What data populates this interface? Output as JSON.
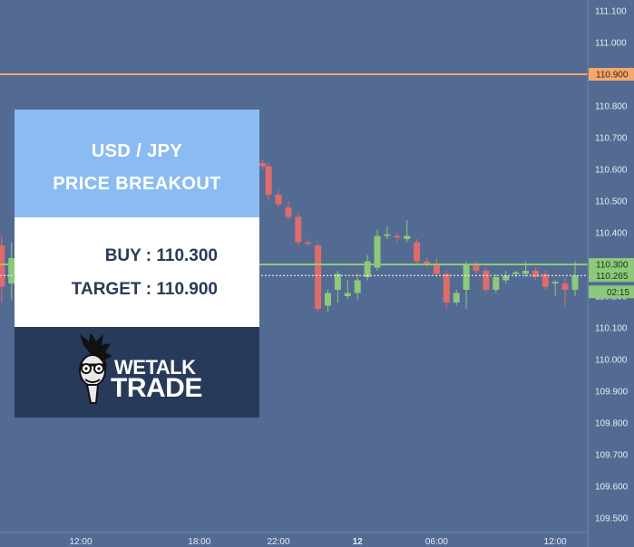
{
  "card": {
    "title_line1": "USD / JPY",
    "title_line2": "PRICE BREAKOUT",
    "buy": "BUY : 110.300",
    "target": "TARGET : 110.900"
  },
  "logo": {
    "line1": "WETALK",
    "line2": "TRADE"
  },
  "colors": {
    "background": "#536b93",
    "bull": "#8cc97a",
    "bear": "#e06b6b",
    "target_line": "#f5a86a",
    "buy_line": "#8cc97a"
  },
  "chart_data": {
    "type": "candlestick",
    "ylim": [
      109.48,
      111.12
    ],
    "y_ticks": [
      "109.500",
      "109.600",
      "109.700",
      "109.800",
      "109.900",
      "110.000",
      "110.100",
      "110.200",
      "110.300",
      "110.400",
      "110.500",
      "110.600",
      "110.700",
      "110.800",
      "110.900",
      "111.000",
      "111.100"
    ],
    "x_ticks": [
      {
        "label": "12:00",
        "t": 12,
        "bold": false
      },
      {
        "label": "18:00",
        "t": 18,
        "bold": false
      },
      {
        "label": "22:00",
        "t": 22,
        "bold": false
      },
      {
        "label": "12",
        "t": 26,
        "bold": true
      },
      {
        "label": "06:00",
        "t": 30,
        "bold": false
      },
      {
        "label": "12:00",
        "t": 36,
        "bold": false
      }
    ],
    "markers": [
      {
        "value": 110.9,
        "label": "110.900",
        "role": "target",
        "style": "solid"
      },
      {
        "value": 110.3,
        "label": "110.300",
        "role": "buy",
        "style": "solid"
      },
      {
        "value": 110.265,
        "label": "110.265",
        "role": "current",
        "style": "dotted"
      }
    ],
    "countdown": "02:15",
    "candles": [
      {
        "t": 8.0,
        "o": 110.36,
        "h": 110.39,
        "l": 110.18,
        "c": 110.23
      },
      {
        "t": 8.5,
        "o": 110.24,
        "h": 110.37,
        "l": 110.19,
        "c": 110.32
      },
      {
        "t": 21.2,
        "o": 110.62,
        "h": 110.63,
        "l": 110.6,
        "c": 110.61
      },
      {
        "t": 21.5,
        "o": 110.61,
        "h": 110.62,
        "l": 110.5,
        "c": 110.52
      },
      {
        "t": 22.0,
        "o": 110.52,
        "h": 110.54,
        "l": 110.48,
        "c": 110.49
      },
      {
        "t": 22.5,
        "o": 110.48,
        "h": 110.5,
        "l": 110.44,
        "c": 110.45
      },
      {
        "t": 23.0,
        "o": 110.45,
        "h": 110.46,
        "l": 110.36,
        "c": 110.37
      },
      {
        "t": 23.5,
        "o": 110.37,
        "h": 110.38,
        "l": 110.36,
        "c": 110.365
      },
      {
        "t": 24.0,
        "o": 110.36,
        "h": 110.37,
        "l": 110.15,
        "c": 110.16
      },
      {
        "t": 24.5,
        "o": 110.17,
        "h": 110.22,
        "l": 110.15,
        "c": 110.21
      },
      {
        "t": 25.0,
        "o": 110.22,
        "h": 110.28,
        "l": 110.18,
        "c": 110.27
      },
      {
        "t": 25.5,
        "o": 110.2,
        "h": 110.25,
        "l": 110.19,
        "c": 110.21
      },
      {
        "t": 26.0,
        "o": 110.21,
        "h": 110.27,
        "l": 110.19,
        "c": 110.25
      },
      {
        "t": 26.5,
        "o": 110.26,
        "h": 110.33,
        "l": 110.25,
        "c": 110.31
      },
      {
        "t": 27.0,
        "o": 110.29,
        "h": 110.41,
        "l": 110.28,
        "c": 110.39
      },
      {
        "t": 27.5,
        "o": 110.39,
        "h": 110.42,
        "l": 110.38,
        "c": 110.395
      },
      {
        "t": 28.0,
        "o": 110.39,
        "h": 110.4,
        "l": 110.37,
        "c": 110.385
      },
      {
        "t": 28.5,
        "o": 110.38,
        "h": 110.44,
        "l": 110.37,
        "c": 110.39
      },
      {
        "t": 29.0,
        "o": 110.37,
        "h": 110.38,
        "l": 110.3,
        "c": 110.31
      },
      {
        "t": 29.5,
        "o": 110.31,
        "h": 110.32,
        "l": 110.29,
        "c": 110.3
      },
      {
        "t": 30.0,
        "o": 110.3,
        "h": 110.32,
        "l": 110.26,
        "c": 110.27
      },
      {
        "t": 30.5,
        "o": 110.27,
        "h": 110.28,
        "l": 110.16,
        "c": 110.18
      },
      {
        "t": 31.0,
        "o": 110.18,
        "h": 110.22,
        "l": 110.17,
        "c": 110.21
      },
      {
        "t": 31.5,
        "o": 110.22,
        "h": 110.31,
        "l": 110.16,
        "c": 110.3
      },
      {
        "t": 32.0,
        "o": 110.3,
        "h": 110.31,
        "l": 110.27,
        "c": 110.28
      },
      {
        "t": 32.5,
        "o": 110.28,
        "h": 110.29,
        "l": 110.21,
        "c": 110.22
      },
      {
        "t": 33.0,
        "o": 110.22,
        "h": 110.27,
        "l": 110.21,
        "c": 110.26
      },
      {
        "t": 33.5,
        "o": 110.25,
        "h": 110.28,
        "l": 110.24,
        "c": 110.265
      },
      {
        "t": 34.0,
        "o": 110.27,
        "h": 110.28,
        "l": 110.26,
        "c": 110.275
      },
      {
        "t": 34.5,
        "o": 110.27,
        "h": 110.31,
        "l": 110.26,
        "c": 110.28
      },
      {
        "t": 35.0,
        "o": 110.28,
        "h": 110.29,
        "l": 110.25,
        "c": 110.26
      },
      {
        "t": 35.5,
        "o": 110.27,
        "h": 110.28,
        "l": 110.22,
        "c": 110.23
      },
      {
        "t": 36.0,
        "o": 110.24,
        "h": 110.25,
        "l": 110.2,
        "c": 110.245
      },
      {
        "t": 36.5,
        "o": 110.24,
        "h": 110.26,
        "l": 110.17,
        "c": 110.22
      },
      {
        "t": 37.0,
        "o": 110.22,
        "h": 110.31,
        "l": 110.2,
        "c": 110.265
      }
    ]
  }
}
